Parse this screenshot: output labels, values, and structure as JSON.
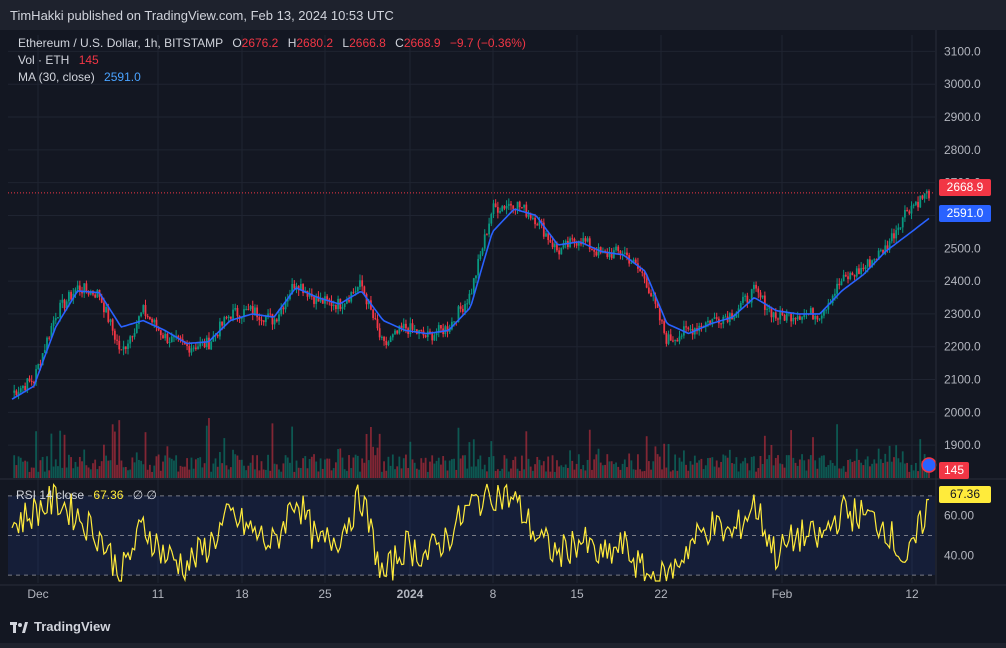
{
  "header": {
    "published": "TimHakki published on TradingView.com, Feb 13, 2024 10:53 UTC"
  },
  "legend": {
    "symbol": "Ethereum / U.S. Dollar, 1h, BITSTAMP",
    "o_label": "O",
    "o_value": "2676.2",
    "h_label": "H",
    "h_value": "2680.2",
    "l_label": "L",
    "l_value": "2666.8",
    "c_label": "C",
    "c_value": "2668.9",
    "change": "−9.7 (−0.36%)",
    "vol_label": "Vol · ETH",
    "vol_value": "145",
    "ma_label": "MA (30, close)",
    "ma_value": "2591.0"
  },
  "rsi_legend": {
    "label": "RSI 14 close",
    "value": "67.36",
    "extra": "∅ ∅"
  },
  "tags": {
    "last_price": "2668.9",
    "ma": "2591.0",
    "volume": "145",
    "rsi": "67.36"
  },
  "brand": {
    "name": "TradingView"
  },
  "colors": {
    "up": "#089981",
    "down": "#f23645",
    "ma": "#2962ff",
    "rsi": "#ffeb3b",
    "bg": "#131722"
  },
  "chart_data": [
    {
      "type": "line",
      "title": "Ethereum / U.S. Dollar, 1h, BITSTAMP",
      "ylim": [
        1800,
        3150
      ],
      "yticks": [
        "3100.0",
        "3000.0",
        "2900.0",
        "2800.0",
        "2700.0",
        "2600.0",
        "2500.0",
        "2400.0",
        "2300.0",
        "2200.0",
        "2100.0",
        "2000.0",
        "1900.0"
      ],
      "xticks": [
        "Dec",
        "11",
        "18",
        "25",
        "2024",
        "8",
        "15",
        "22",
        "Feb",
        "12"
      ],
      "series": [
        {
          "name": "Ethereum / U.S. Dollar",
          "x": [
            "Dec 1",
            "Dec 4",
            "Dec 7",
            "Dec 9",
            "Dec 11",
            "Dec 12",
            "Dec 14",
            "Dec 16",
            "Dec 18",
            "Dec 20",
            "Dec 22",
            "Dec 24",
            "Dec 26",
            "Dec 28",
            "Dec 30",
            "Jan 1",
            "Jan 2",
            "Jan 3",
            "Jan 5",
            "Jan 7",
            "Jan 9",
            "Jan 10",
            "Jan 11",
            "Jan 12",
            "Jan 13",
            "Jan 15",
            "Jan 17",
            "Jan 19",
            "Jan 21",
            "Jan 22",
            "Jan 23",
            "Jan 25",
            "Jan 27",
            "Jan 29",
            "Jan 31",
            "Feb 2",
            "Feb 4",
            "Feb 6",
            "Feb 8",
            "Feb 10",
            "Feb 11",
            "Feb 12",
            "Feb 13"
          ],
          "values": [
            2060,
            2100,
            2300,
            2380,
            2360,
            2180,
            2310,
            2230,
            2200,
            2210,
            2300,
            2310,
            2280,
            2400,
            2340,
            2330,
            2390,
            2200,
            2260,
            2230,
            2260,
            2360,
            2620,
            2640,
            2590,
            2490,
            2530,
            2480,
            2490,
            2410,
            2220,
            2250,
            2280,
            2300,
            2370,
            2290,
            2300,
            2300,
            2400,
            2440,
            2500,
            2620,
            2668.9
          ]
        },
        {
          "name": "MA (30, close)",
          "x": [
            "Dec 1",
            "Dec 4",
            "Dec 7",
            "Dec 9",
            "Dec 11",
            "Dec 12",
            "Dec 14",
            "Dec 16",
            "Dec 18",
            "Dec 20",
            "Dec 22",
            "Dec 24",
            "Dec 26",
            "Dec 28",
            "Dec 30",
            "Jan 1",
            "Jan 2",
            "Jan 3",
            "Jan 5",
            "Jan 7",
            "Jan 9",
            "Jan 10",
            "Jan 11",
            "Jan 12",
            "Jan 13",
            "Jan 15",
            "Jan 17",
            "Jan 19",
            "Jan 21",
            "Jan 22",
            "Jan 23",
            "Jan 25",
            "Jan 27",
            "Jan 29",
            "Jan 31",
            "Feb 2",
            "Feb 4",
            "Feb 6",
            "Feb 8",
            "Feb 10",
            "Feb 11",
            "Feb 12",
            "Feb 13"
          ],
          "values": [
            2040,
            2080,
            2260,
            2370,
            2365,
            2260,
            2280,
            2250,
            2210,
            2215,
            2280,
            2300,
            2290,
            2380,
            2350,
            2330,
            2370,
            2280,
            2250,
            2240,
            2250,
            2320,
            2550,
            2620,
            2600,
            2510,
            2520,
            2490,
            2480,
            2430,
            2270,
            2240,
            2270,
            2290,
            2350,
            2310,
            2300,
            2300,
            2370,
            2420,
            2490,
            2540,
            2591.0
          ]
        }
      ]
    },
    {
      "type": "line",
      "title": "RSI 14 close",
      "ylim": [
        26,
        78
      ],
      "yticks": [
        "70.00",
        "60.00",
        "40.00"
      ],
      "series": [
        {
          "name": "RSI 14 close",
          "x": [
            "Dec 1",
            "Dec 4",
            "Dec 7",
            "Dec 9",
            "Dec 11",
            "Dec 12",
            "Dec 14",
            "Dec 16",
            "Dec 18",
            "Dec 20",
            "Dec 22",
            "Dec 24",
            "Dec 26",
            "Dec 28",
            "Dec 30",
            "Jan 1",
            "Jan 2",
            "Jan 3",
            "Jan 5",
            "Jan 7",
            "Jan 9",
            "Jan 10",
            "Jan 11",
            "Jan 12",
            "Jan 13",
            "Jan 15",
            "Jan 17",
            "Jan 19",
            "Jan 21",
            "Jan 22",
            "Jan 23",
            "Jan 25",
            "Jan 27",
            "Jan 29",
            "Jan 31",
            "Feb 2",
            "Feb 4",
            "Feb 6",
            "Feb 8",
            "Feb 10",
            "Feb 11",
            "Feb 12",
            "Feb 13"
          ],
          "values": [
            55,
            62,
            68,
            60,
            50,
            30,
            55,
            40,
            35,
            45,
            60,
            52,
            45,
            70,
            45,
            50,
            70,
            28,
            45,
            40,
            50,
            65,
            72,
            68,
            50,
            40,
            48,
            38,
            45,
            30,
            28,
            45,
            55,
            50,
            66,
            40,
            50,
            48,
            62,
            60,
            55,
            35,
            67.36
          ]
        }
      ]
    }
  ]
}
